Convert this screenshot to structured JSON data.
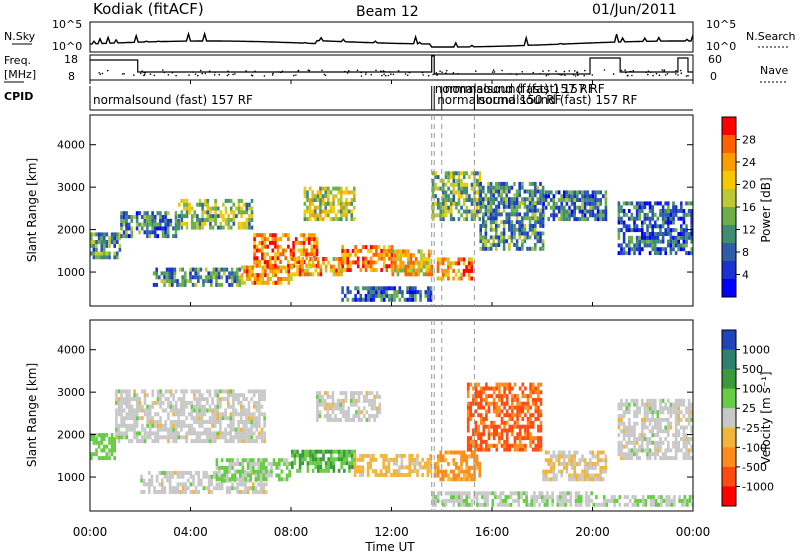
{
  "header": {
    "station": "Kodiak (fitACF)",
    "beam": "Beam 12",
    "date": "01/Jun/2011"
  },
  "sky_panel": {
    "left_label": "N.Sky",
    "left_ticks": [
      "10^5",
      "10^0"
    ],
    "right_label": "N.Search",
    "right_ticks": [
      "10^5",
      "10^0"
    ]
  },
  "freq_panel": {
    "left_label_1": "Freq.",
    "left_label_2": "[MHz]",
    "left_ticks": [
      "18",
      "8"
    ],
    "right_label": "Nave",
    "right_ticks": [
      "60",
      "0"
    ]
  },
  "cpid": {
    "label": "CPID",
    "segments": [
      {
        "x": 0.0,
        "label": "normalsound (fast) 157 RF"
      },
      {
        "x": 13.6,
        "label": "normalsound (fast) 157 RF"
      },
      {
        "x": 13.7,
        "label": "normalsound 150 RF"
      },
      {
        "x": 14.0,
        "label": "normalsound (fast) 157 RF"
      },
      {
        "x": 15.3,
        "label": "normalsound (fast) 157 RF"
      }
    ]
  },
  "colorbars": {
    "power": {
      "title": "Power [dB]",
      "ticks": [
        "28",
        "24",
        "20",
        "16",
        "12",
        "8",
        "4"
      ],
      "colors": [
        "#ff0000",
        "#ff6000",
        "#ff9c00",
        "#f5c800",
        "#bcc836",
        "#6cae4a",
        "#3f8c72",
        "#2d5ca8",
        "#1a32d0",
        "#0000ff"
      ]
    },
    "velocity": {
      "title": "Velocity [m s⁻¹]",
      "ticks": [
        "1000",
        "500",
        "100",
        "25",
        "-25",
        "-100",
        "-500",
        "-1000"
      ],
      "colors": [
        "#2244bb",
        "#2e7f6e",
        "#3a9a3a",
        "#66cc44",
        "#c8c8c8",
        "#f2b43a",
        "#ff8c1a",
        "#ff4a10",
        "#ff0000"
      ]
    }
  },
  "chart_data": {
    "type": "heatmap",
    "xlabel": "Time UT",
    "ylabel": "Slant Range [km]",
    "x_ticks": [
      "00:00",
      "04:00",
      "08:00",
      "12:00",
      "16:00",
      "20:00",
      "00:00"
    ],
    "xlim": [
      0,
      24
    ],
    "ylim": [
      200,
      4700
    ],
    "y_ticks": [
      1000,
      2000,
      3000,
      4000
    ],
    "panels": [
      {
        "quantity": "Power",
        "unit": "dB",
        "clim": [
          0,
          30
        ],
        "bands": [
          {
            "t0": 0.0,
            "t1": 1.2,
            "r0": 1300,
            "r1": 1900,
            "value": 12
          },
          {
            "t0": 1.2,
            "t1": 3.5,
            "r0": 1800,
            "r1": 2400,
            "value": 9
          },
          {
            "t0": 3.5,
            "t1": 6.5,
            "r0": 2000,
            "r1": 2700,
            "value": 14
          },
          {
            "t0": 2.5,
            "t1": 6.0,
            "r0": 650,
            "r1": 1050,
            "value": 10
          },
          {
            "t0": 6.0,
            "t1": 8.0,
            "r0": 700,
            "r1": 1100,
            "value": 22
          },
          {
            "t0": 6.5,
            "t1": 9.0,
            "r0": 1100,
            "r1": 1900,
            "value": 24
          },
          {
            "t0": 8.5,
            "t1": 10.5,
            "r0": 2200,
            "r1": 3000,
            "value": 16
          },
          {
            "t0": 8.0,
            "t1": 10.0,
            "r0": 900,
            "r1": 1300,
            "value": 21
          },
          {
            "t0": 10.0,
            "t1": 12.0,
            "r0": 1000,
            "r1": 1600,
            "value": 24
          },
          {
            "t0": 12.0,
            "t1": 13.6,
            "r0": 900,
            "r1": 1500,
            "value": 20
          },
          {
            "t0": 10.0,
            "t1": 13.6,
            "r0": 300,
            "r1": 600,
            "value": 8
          },
          {
            "t0": 13.6,
            "t1": 15.5,
            "r0": 2200,
            "r1": 3300,
            "value": 14
          },
          {
            "t0": 13.8,
            "t1": 15.2,
            "r0": 800,
            "r1": 1300,
            "value": 22
          },
          {
            "t0": 15.5,
            "t1": 18.0,
            "r0": 1500,
            "r1": 3100,
            "value": 10
          },
          {
            "t0": 18.0,
            "t1": 20.5,
            "r0": 2200,
            "r1": 2900,
            "value": 9
          },
          {
            "t0": 21.0,
            "t1": 24.0,
            "r0": 1400,
            "r1": 2600,
            "value": 7
          }
        ]
      },
      {
        "quantity": "Velocity",
        "unit": "m s-1",
        "clim": [
          -1000,
          1000
        ],
        "bands": [
          {
            "t0": 0.0,
            "t1": 1.0,
            "r0": 1400,
            "r1": 2000,
            "value": 200
          },
          {
            "t0": 1.0,
            "t1": 7.0,
            "r0": 1800,
            "r1": 3000,
            "value": 0
          },
          {
            "t0": 2.0,
            "t1": 7.0,
            "r0": 600,
            "r1": 1100,
            "value": 0
          },
          {
            "t0": 5.0,
            "t1": 8.0,
            "r0": 900,
            "r1": 1400,
            "value": 150
          },
          {
            "t0": 8.0,
            "t1": 10.5,
            "r0": 1100,
            "r1": 1600,
            "value": 300
          },
          {
            "t0": 10.5,
            "t1": 13.6,
            "r0": 1000,
            "r1": 1500,
            "value": -200
          },
          {
            "t0": 9.0,
            "t1": 11.5,
            "r0": 2300,
            "r1": 3000,
            "value": 0
          },
          {
            "t0": 13.7,
            "t1": 15.5,
            "r0": 900,
            "r1": 1600,
            "value": -400
          },
          {
            "t0": 15.0,
            "t1": 18.0,
            "r0": 1600,
            "r1": 3200,
            "value": -600
          },
          {
            "t0": 18.0,
            "t1": 20.5,
            "r0": 900,
            "r1": 1600,
            "value": -100
          },
          {
            "t0": 13.6,
            "t1": 20.0,
            "r0": 300,
            "r1": 600,
            "value": 40
          },
          {
            "t0": 20.0,
            "t1": 24.0,
            "r0": 300,
            "r1": 500,
            "value": 60
          },
          {
            "t0": 21.0,
            "t1": 24.0,
            "r0": 1400,
            "r1": 2800,
            "value": 0
          }
        ]
      }
    ]
  }
}
